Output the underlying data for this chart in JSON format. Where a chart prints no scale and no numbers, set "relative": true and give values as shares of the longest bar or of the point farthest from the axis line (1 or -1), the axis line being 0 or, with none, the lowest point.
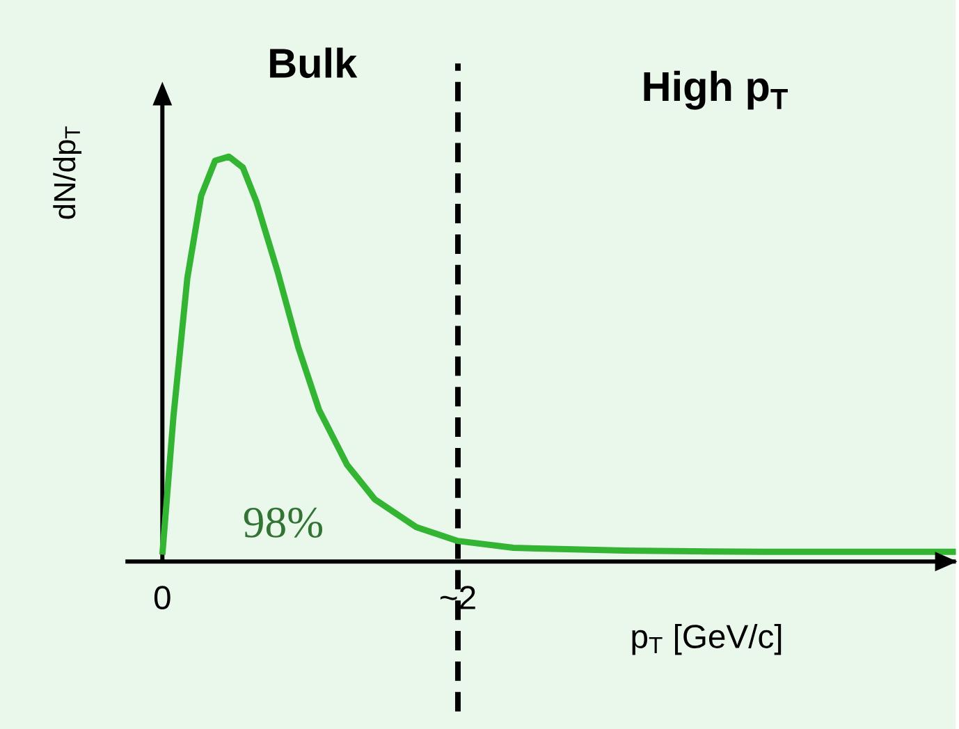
{
  "chart_data": {
    "type": "line",
    "relative": true,
    "ylabel": "dN/dp$_{T}$",
    "xlabel": "p$_{T}$ [GeV/c]",
    "x": [
      0,
      0.075,
      0.169,
      0.263,
      0.357,
      0.451,
      0.545,
      0.638,
      0.779,
      0.92,
      1.06,
      1.25,
      1.437,
      1.718,
      2.0,
      2.376,
      3.127,
      4.066,
      5.37
    ],
    "series": [
      {
        "color": "#33b533",
        "values": [
          0.017,
          0.358,
          0.7,
          0.904,
          0.99,
          1.0,
          0.973,
          0.887,
          0.717,
          0.529,
          0.375,
          0.239,
          0.154,
          0.085,
          0.051,
          0.034,
          0.027,
          0.024,
          0.024
        ]
      }
    ],
    "xlim": [
      -0.25,
      5.37
    ],
    "xticks": [
      0,
      {
        "value": 2,
        "label": "~2"
      }
    ],
    "ref_lines": [
      {
        "axis": "x",
        "value": 2,
        "line_style": "dashed",
        "color": "#000000"
      }
    ],
    "annotations": [
      "Bulk",
      "High p$_{T}$",
      "98%"
    ]
  }
}
